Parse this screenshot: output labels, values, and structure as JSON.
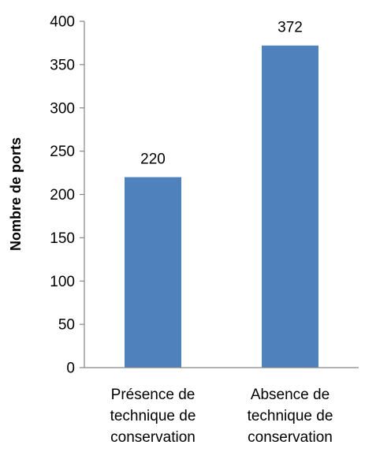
{
  "chart_data": {
    "type": "bar",
    "title": "",
    "xlabel": "",
    "ylabel": "Nombre de ports",
    "categories": [
      [
        "Présence de",
        "technique de",
        "conservation"
      ],
      [
        "Absence de",
        "technique de",
        "conservation"
      ]
    ],
    "values": [
      220,
      372
    ],
    "data_labels": [
      "220",
      "372"
    ],
    "ylim": [
      0,
      400
    ],
    "yticks": [
      0,
      50,
      100,
      150,
      200,
      250,
      300,
      350,
      400
    ],
    "grid": false,
    "legend": "none",
    "bar_color": "#4F81BD"
  }
}
